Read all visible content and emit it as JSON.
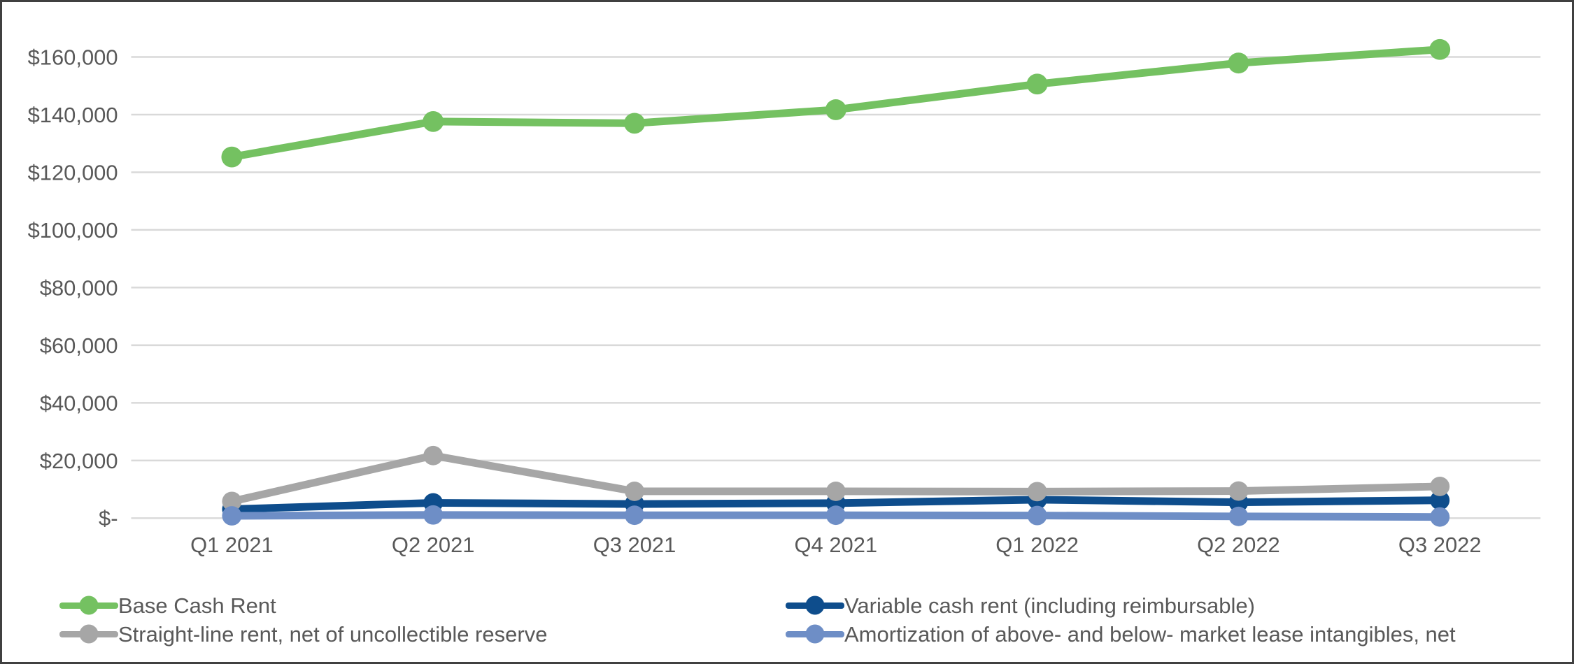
{
  "chart_data": {
    "type": "line",
    "title": "",
    "categories": [
      "Q1 2021",
      "Q2 2021",
      "Q3 2021",
      "Q4 2021",
      "Q1 2022",
      "Q2 2022",
      "Q3 2022"
    ],
    "series": [
      {
        "name": "Base Cash Rent",
        "color": "#74C161",
        "values": [
          125300,
          137600,
          137000,
          141700,
          150600,
          157900,
          162600
        ]
      },
      {
        "name": "Variable cash rent (including reimbursable)",
        "color": "#0E4D8C",
        "values": [
          3100,
          5300,
          4900,
          5200,
          6400,
          5500,
          6200
        ]
      },
      {
        "name": "Straight-line rent, net of uncollectible reserve",
        "color": "#A6A6A6",
        "values": [
          5800,
          21700,
          9300,
          9300,
          9200,
          9400,
          11000
        ]
      },
      {
        "name": "Amortization of above- and below- market lease intangibles, net",
        "color": "#6E8EC6",
        "values": [
          800,
          1100,
          1000,
          1000,
          900,
          600,
          400
        ]
      }
    ],
    "y_axis": {
      "min": 0,
      "max": 160000,
      "step": 20000,
      "tick_labels": [
        "$-",
        "$20,000",
        "$40,000",
        "$60,000",
        "$80,000",
        "$100,000",
        "$120,000",
        "$140,000",
        "$160,000"
      ]
    },
    "x_axis": {
      "label": ""
    },
    "grid": true,
    "legend_position": "bottom",
    "legend_order": [
      0,
      1,
      2,
      3
    ]
  },
  "colors": {
    "gridline": "#D9D9D9",
    "axis_text": "#595959",
    "background": "#FFFFFF",
    "border": "#404040"
  }
}
